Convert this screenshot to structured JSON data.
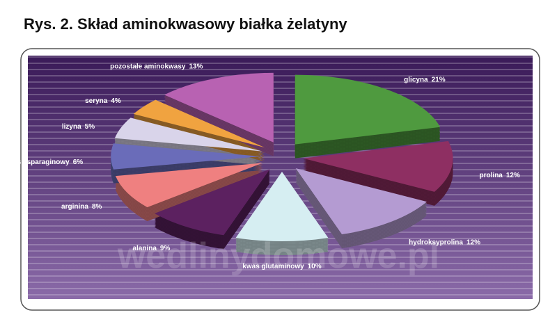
{
  "chart_data": {
    "type": "pie",
    "title": "Rys. 2. Skład aminokwasowy białka żelatyny",
    "watermark": "wedlinydomowe.pl",
    "categories": [
      "glicyna",
      "prolina",
      "hydroksyprolina",
      "kwas glutaminowy",
      "alanina",
      "arginina",
      "kwas asparaginowy",
      "lizyna",
      "seryna",
      "pozostałe aminokwasy"
    ],
    "values": [
      21,
      12,
      12,
      10,
      9,
      8,
      6,
      5,
      4,
      13
    ],
    "value_labels": [
      "21%",
      "12%",
      "12%",
      "10%",
      "9%",
      "8%",
      "6%",
      "5%",
      "4%",
      "13%"
    ],
    "colors": [
      "#4f9a3f",
      "#8e2f62",
      "#b49bd2",
      "#d6eef2",
      "#5c2160",
      "#ef8080",
      "#6a6cb9",
      "#d9d4ea",
      "#f0a340",
      "#b862b2"
    ]
  }
}
